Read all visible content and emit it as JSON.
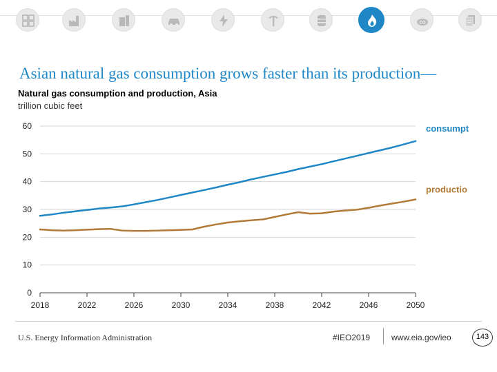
{
  "colors": {
    "accent": "#1f87c6",
    "consumption": "#1f87c6",
    "production": "#b17a36",
    "grid": "#d6d6d6"
  },
  "nav_icons": [
    "overview-icon",
    "industrial-icon",
    "buildings-icon",
    "transportation-icon",
    "electricity-icon",
    "coal-mining-icon",
    "petroleum-barrel-icon",
    "natural-gas-flame-icon",
    "co2-emissions-icon",
    "documents-icon"
  ],
  "slide": {
    "headline": "Asian natural gas consumption grows faster than its production—"
  },
  "chart_data": {
    "type": "line",
    "title": "Natural gas consumption and production, Asia",
    "ylabel": "trillion cubic feet",
    "xlabel": "",
    "xlim": [
      2018,
      2050
    ],
    "ylim": [
      0,
      60
    ],
    "x_ticks": [
      2018,
      2022,
      2026,
      2030,
      2034,
      2038,
      2042,
      2046,
      2050
    ],
    "y_ticks": [
      0,
      10,
      20,
      30,
      40,
      50,
      60
    ],
    "grid": true,
    "series": [
      {
        "name": "consumption",
        "label": "consumpt",
        "color": "#1f87c6",
        "x": [
          2018,
          2019,
          2020,
          2021,
          2022,
          2023,
          2024,
          2025,
          2026,
          2027,
          2028,
          2029,
          2030,
          2031,
          2032,
          2033,
          2034,
          2035,
          2036,
          2037,
          2038,
          2039,
          2040,
          2041,
          2042,
          2043,
          2044,
          2045,
          2046,
          2047,
          2048,
          2049,
          2050
        ],
        "values": [
          27.7,
          28.2,
          28.8,
          29.3,
          29.8,
          30.3,
          30.7,
          31.1,
          31.8,
          32.6,
          33.4,
          34.3,
          35.2,
          36.1,
          37.0,
          37.9,
          38.9,
          39.8,
          40.8,
          41.7,
          42.6,
          43.5,
          44.5,
          45.4,
          46.3,
          47.3,
          48.3,
          49.3,
          50.3,
          51.3,
          52.3,
          53.4,
          54.6
        ]
      },
      {
        "name": "production",
        "label": "productio",
        "color": "#b17a36",
        "x": [
          2018,
          2019,
          2020,
          2021,
          2022,
          2023,
          2024,
          2025,
          2026,
          2027,
          2028,
          2029,
          2030,
          2031,
          2032,
          2033,
          2034,
          2035,
          2036,
          2037,
          2038,
          2039,
          2040,
          2041,
          2042,
          2043,
          2044,
          2045,
          2046,
          2047,
          2048,
          2049,
          2050
        ],
        "values": [
          22.8,
          22.5,
          22.4,
          22.5,
          22.7,
          22.9,
          23.0,
          22.4,
          22.3,
          22.3,
          22.4,
          22.5,
          22.6,
          22.8,
          23.8,
          24.6,
          25.3,
          25.7,
          26.1,
          26.4,
          27.3,
          28.2,
          29.0,
          28.5,
          28.6,
          29.2,
          29.6,
          29.9,
          30.6,
          31.4,
          32.1,
          32.8,
          33.6
        ]
      }
    ]
  },
  "footer": {
    "agency": "U.S. Energy Information Administration",
    "hashtag": "#IEO2019",
    "website": "www.eia.gov/ieo",
    "page_number": "143"
  }
}
